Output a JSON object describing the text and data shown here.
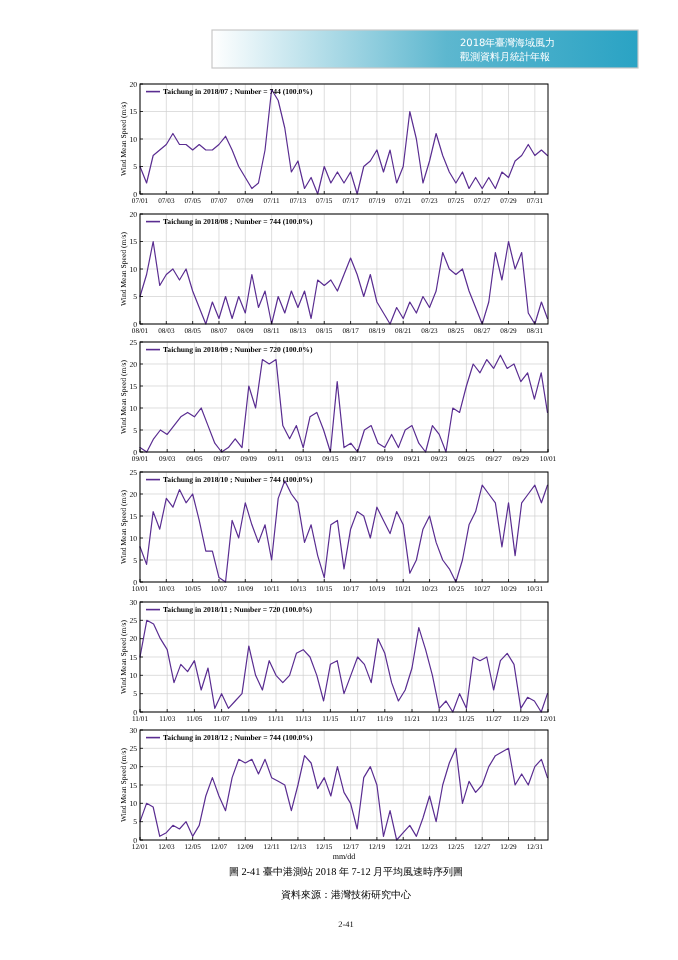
{
  "chart_data": [
    {
      "type": "line",
      "ylabel": "Wind Mean Speed (m/s)",
      "xlim": [
        "2018-07-01T00:00",
        "2018-08-01T00:00"
      ],
      "ylim": [
        0,
        20
      ],
      "yticks": [
        0,
        5,
        10,
        15,
        20
      ],
      "grid": true,
      "legend": "top left",
      "annotations": [
        "2018年臺灣海域風力",
        "觀測資料月統計年報"
      ],
      "xticks": [
        {
          "value": "2018-07-01",
          "label": "07/01"
        },
        {
          "value": "2018-07-03",
          "label": "07/03"
        },
        {
          "value": "2018-07-05",
          "label": "07/05"
        },
        {
          "value": "2018-07-07",
          "label": "07/07"
        },
        {
          "value": "2018-07-09",
          "label": "07/09"
        },
        {
          "value": "2018-07-11",
          "label": "07/11"
        },
        {
          "value": "2018-07-13",
          "label": "07/13"
        },
        {
          "value": "2018-07-15",
          "label": "07/15"
        },
        {
          "value": "2018-07-17",
          "label": "07/17"
        },
        {
          "value": "2018-07-19",
          "label": "07/19"
        },
        {
          "value": "2018-07-21",
          "label": "07/21"
        },
        {
          "value": "2018-07-23",
          "label": "07/23"
        },
        {
          "value": "2018-07-25",
          "label": "07/25"
        },
        {
          "value": "2018-07-27",
          "label": "07/27"
        },
        {
          "value": "2018-07-29",
          "label": "07/29"
        },
        {
          "value": "2018-07-31",
          "label": "07/31"
        }
      ],
      "series": [
        {
          "name": "Taichung in 2018/07 ; Number = 744  (100.0%)",
          "color": "#5a2d91",
          "x": [
            "2018-07-01T00:00",
            "2018-07-01T12:00",
            "2018-07-02T00:00",
            "2018-07-02T12:00",
            "2018-07-03T00:00",
            "2018-07-03T12:00",
            "2018-07-04T00:00",
            "2018-07-04T12:00",
            "2018-07-05T00:00",
            "2018-07-05T12:00",
            "2018-07-06T00:00",
            "2018-07-06T12:00",
            "2018-07-07T00:00",
            "2018-07-07T12:00",
            "2018-07-08T00:00",
            "2018-07-08T12:00",
            "2018-07-09T00:00",
            "2018-07-09T12:00",
            "2018-07-10T00:00",
            "2018-07-10T12:00",
            "2018-07-11T00:00",
            "2018-07-11T12:00",
            "2018-07-12T00:00",
            "2018-07-12T12:00",
            "2018-07-13T00:00",
            "2018-07-13T12:00",
            "2018-07-14T00:00",
            "2018-07-14T12:00",
            "2018-07-15T00:00",
            "2018-07-15T12:00",
            "2018-07-16T00:00",
            "2018-07-16T12:00",
            "2018-07-17T00:00",
            "2018-07-17T12:00",
            "2018-07-18T00:00",
            "2018-07-18T12:00",
            "2018-07-19T00:00",
            "2018-07-19T12:00",
            "2018-07-20T00:00",
            "2018-07-20T12:00",
            "2018-07-21T00:00",
            "2018-07-21T12:00",
            "2018-07-22T00:00",
            "2018-07-22T12:00",
            "2018-07-23T00:00",
            "2018-07-23T12:00",
            "2018-07-24T00:00",
            "2018-07-24T12:00",
            "2018-07-25T00:00",
            "2018-07-25T12:00",
            "2018-07-26T00:00",
            "2018-07-26T12:00",
            "2018-07-27T00:00",
            "2018-07-27T12:00",
            "2018-07-28T00:00",
            "2018-07-28T12:00",
            "2018-07-29T00:00",
            "2018-07-29T12:00",
            "2018-07-30T00:00",
            "2018-07-30T12:00",
            "2018-07-31T00:00",
            "2018-07-31T12:00",
            "2018-07-31T23:00"
          ],
          "values": [
            5,
            2,
            7,
            8,
            9,
            11,
            9,
            9,
            8,
            9,
            8,
            8,
            9,
            10.5,
            8,
            5,
            3,
            1,
            2,
            8,
            19,
            17,
            12,
            4,
            6,
            1,
            3,
            0,
            5,
            2,
            4,
            2,
            4,
            0,
            5,
            6,
            8,
            4,
            8,
            2,
            5,
            15,
            10,
            2,
            6,
            11,
            7,
            4,
            2,
            4,
            1,
            3,
            1,
            3,
            1,
            4,
            3,
            6,
            7,
            9,
            7,
            8,
            7
          ]
        }
      ]
    },
    {
      "type": "line",
      "ylabel": "Wind Mean Speed (m/s)",
      "xlim": [
        "2018-08-01T00:00",
        "2018-09-01T00:00"
      ],
      "ylim": [
        0,
        20
      ],
      "yticks": [
        0,
        5,
        10,
        15,
        20
      ],
      "grid": true,
      "legend": "top left",
      "xticks": [
        {
          "value": "2018-08-01",
          "label": "08/01"
        },
        {
          "value": "2018-08-03",
          "label": "08/03"
        },
        {
          "value": "2018-08-05",
          "label": "08/05"
        },
        {
          "value": "2018-08-07",
          "label": "08/07"
        },
        {
          "value": "2018-08-09",
          "label": "08/09"
        },
        {
          "value": "2018-08-11",
          "label": "08/11"
        },
        {
          "value": "2018-08-13",
          "label": "08/13"
        },
        {
          "value": "2018-08-15",
          "label": "08/15"
        },
        {
          "value": "2018-08-17",
          "label": "08/17"
        },
        {
          "value": "2018-08-19",
          "label": "08/19"
        },
        {
          "value": "2018-08-21",
          "label": "08/21"
        },
        {
          "value": "2018-08-23",
          "label": "08/23"
        },
        {
          "value": "2018-08-25",
          "label": "08/25"
        },
        {
          "value": "2018-08-27",
          "label": "08/27"
        },
        {
          "value": "2018-08-29",
          "label": "08/29"
        },
        {
          "value": "2018-08-31",
          "label": "08/31"
        }
      ],
      "series": [
        {
          "name": "Taichung in 2018/08 ; Number = 744  (100.0%)",
          "color": "#5a2d91",
          "x": [
            "2018-08-01T00:00",
            "2018-08-01T12:00",
            "2018-08-02T00:00",
            "2018-08-02T12:00",
            "2018-08-03T00:00",
            "2018-08-03T12:00",
            "2018-08-04T00:00",
            "2018-08-04T12:00",
            "2018-08-05T00:00",
            "2018-08-05T12:00",
            "2018-08-06T00:00",
            "2018-08-06T12:00",
            "2018-08-07T00:00",
            "2018-08-07T12:00",
            "2018-08-08T00:00",
            "2018-08-08T12:00",
            "2018-08-09T00:00",
            "2018-08-09T12:00",
            "2018-08-10T00:00",
            "2018-08-10T12:00",
            "2018-08-11T00:00",
            "2018-08-11T12:00",
            "2018-08-12T00:00",
            "2018-08-12T12:00",
            "2018-08-13T00:00",
            "2018-08-13T12:00",
            "2018-08-14T00:00",
            "2018-08-14T12:00",
            "2018-08-15T00:00",
            "2018-08-15T12:00",
            "2018-08-16T00:00",
            "2018-08-16T12:00",
            "2018-08-17T00:00",
            "2018-08-17T12:00",
            "2018-08-18T00:00",
            "2018-08-18T12:00",
            "2018-08-19T00:00",
            "2018-08-19T12:00",
            "2018-08-20T00:00",
            "2018-08-20T12:00",
            "2018-08-21T00:00",
            "2018-08-21T12:00",
            "2018-08-22T00:00",
            "2018-08-22T12:00",
            "2018-08-23T00:00",
            "2018-08-23T12:00",
            "2018-08-24T00:00",
            "2018-08-24T12:00",
            "2018-08-25T00:00",
            "2018-08-25T12:00",
            "2018-08-26T00:00",
            "2018-08-26T12:00",
            "2018-08-27T00:00",
            "2018-08-27T12:00",
            "2018-08-28T00:00",
            "2018-08-28T12:00",
            "2018-08-29T00:00",
            "2018-08-29T12:00",
            "2018-08-30T00:00",
            "2018-08-30T12:00",
            "2018-08-31T00:00",
            "2018-08-31T12:00",
            "2018-08-31T23:00"
          ],
          "values": [
            5,
            9,
            15,
            7,
            9,
            10,
            8,
            10,
            6,
            3,
            0,
            4,
            1,
            5,
            1,
            5,
            2,
            9,
            3,
            6,
            0,
            5,
            2,
            6,
            3,
            6,
            1,
            8,
            7,
            8,
            6,
            9,
            12,
            9,
            5,
            9,
            4,
            2,
            0,
            3,
            1,
            4,
            2,
            5,
            3,
            6,
            13,
            10,
            9,
            10,
            6,
            3,
            0,
            4,
            13,
            8,
            15,
            10,
            13,
            2,
            0,
            4,
            1
          ]
        }
      ]
    },
    {
      "type": "line",
      "ylabel": "Wind Mean Speed (m/s)",
      "xlim": [
        "2018-09-01T00:00",
        "2018-10-01T00:00"
      ],
      "ylim": [
        0,
        25
      ],
      "yticks": [
        0,
        5,
        10,
        15,
        20,
        25
      ],
      "grid": true,
      "legend": "top left",
      "xticks": [
        {
          "value": "2018-09-01",
          "label": "09/01"
        },
        {
          "value": "2018-09-03",
          "label": "09/03"
        },
        {
          "value": "2018-09-05",
          "label": "09/05"
        },
        {
          "value": "2018-09-07",
          "label": "09/07"
        },
        {
          "value": "2018-09-09",
          "label": "09/09"
        },
        {
          "value": "2018-09-11",
          "label": "09/11"
        },
        {
          "value": "2018-09-13",
          "label": "09/13"
        },
        {
          "value": "2018-09-15",
          "label": "09/15"
        },
        {
          "value": "2018-09-17",
          "label": "09/17"
        },
        {
          "value": "2018-09-19",
          "label": "09/19"
        },
        {
          "value": "2018-09-21",
          "label": "09/21"
        },
        {
          "value": "2018-09-23",
          "label": "09/23"
        },
        {
          "value": "2018-09-25",
          "label": "09/25"
        },
        {
          "value": "2018-09-27",
          "label": "09/27"
        },
        {
          "value": "2018-09-29",
          "label": "09/29"
        },
        {
          "value": "2018-10-01",
          "label": "10/01"
        }
      ],
      "series": [
        {
          "name": "Taichung in 2018/09 ; Number = 720  (100.0%)",
          "color": "#5a2d91",
          "x": [
            "2018-09-01T00:00",
            "2018-09-01T12:00",
            "2018-09-02T00:00",
            "2018-09-02T12:00",
            "2018-09-03T00:00",
            "2018-09-03T12:00",
            "2018-09-04T00:00",
            "2018-09-04T12:00",
            "2018-09-05T00:00",
            "2018-09-05T12:00",
            "2018-09-06T00:00",
            "2018-09-06T12:00",
            "2018-09-07T00:00",
            "2018-09-07T12:00",
            "2018-09-08T00:00",
            "2018-09-08T12:00",
            "2018-09-09T00:00",
            "2018-09-09T12:00",
            "2018-09-10T00:00",
            "2018-09-10T12:00",
            "2018-09-11T00:00",
            "2018-09-11T12:00",
            "2018-09-12T00:00",
            "2018-09-12T12:00",
            "2018-09-13T00:00",
            "2018-09-13T12:00",
            "2018-09-14T00:00",
            "2018-09-14T12:00",
            "2018-09-15T00:00",
            "2018-09-15T12:00",
            "2018-09-16T00:00",
            "2018-09-16T12:00",
            "2018-09-17T00:00",
            "2018-09-17T12:00",
            "2018-09-18T00:00",
            "2018-09-18T12:00",
            "2018-09-19T00:00",
            "2018-09-19T12:00",
            "2018-09-20T00:00",
            "2018-09-20T12:00",
            "2018-09-21T00:00",
            "2018-09-21T12:00",
            "2018-09-22T00:00",
            "2018-09-22T12:00",
            "2018-09-23T00:00",
            "2018-09-23T12:00",
            "2018-09-24T00:00",
            "2018-09-24T12:00",
            "2018-09-25T00:00",
            "2018-09-25T12:00",
            "2018-09-26T00:00",
            "2018-09-26T12:00",
            "2018-09-27T00:00",
            "2018-09-27T12:00",
            "2018-09-28T00:00",
            "2018-09-28T12:00",
            "2018-09-29T00:00",
            "2018-09-29T12:00",
            "2018-09-30T00:00",
            "2018-09-30T12:00",
            "2018-09-30T23:00"
          ],
          "values": [
            1,
            0,
            3,
            5,
            4,
            6,
            8,
            9,
            8,
            10,
            6,
            2,
            0,
            1,
            3,
            1,
            15,
            10,
            21,
            20,
            21,
            6,
            3,
            6,
            1,
            8,
            9,
            5,
            0,
            16,
            1,
            2,
            0,
            5,
            6,
            2,
            1,
            4,
            1,
            5,
            6,
            2,
            0,
            6,
            4,
            0,
            10,
            9,
            15,
            20,
            18,
            21,
            19,
            22,
            19,
            20,
            16,
            18,
            12,
            18,
            9
          ]
        }
      ]
    },
    {
      "type": "line",
      "ylabel": "Wind Mean Speed (m/s)",
      "xlim": [
        "2018-10-01T00:00",
        "2018-11-01T00:00"
      ],
      "ylim": [
        0,
        25
      ],
      "yticks": [
        0,
        5,
        10,
        15,
        20,
        25
      ],
      "grid": true,
      "legend": "top left",
      "xticks": [
        {
          "value": "2018-10-01",
          "label": "10/01"
        },
        {
          "value": "2018-10-03",
          "label": "10/03"
        },
        {
          "value": "2018-10-05",
          "label": "10/05"
        },
        {
          "value": "2018-10-07",
          "label": "10/07"
        },
        {
          "value": "2018-10-09",
          "label": "10/09"
        },
        {
          "value": "2018-10-11",
          "label": "10/11"
        },
        {
          "value": "2018-10-13",
          "label": "10/13"
        },
        {
          "value": "2018-10-15",
          "label": "10/15"
        },
        {
          "value": "2018-10-17",
          "label": "10/17"
        },
        {
          "value": "2018-10-19",
          "label": "10/19"
        },
        {
          "value": "2018-10-21",
          "label": "10/21"
        },
        {
          "value": "2018-10-23",
          "label": "10/23"
        },
        {
          "value": "2018-10-25",
          "label": "10/25"
        },
        {
          "value": "2018-10-27",
          "label": "10/27"
        },
        {
          "value": "2018-10-29",
          "label": "10/29"
        },
        {
          "value": "2018-10-31",
          "label": "10/31"
        }
      ],
      "series": [
        {
          "name": "Taichung in 2018/10 ; Number = 744  (100.0%)",
          "color": "#5a2d91",
          "x": [
            "2018-10-01T00:00",
            "2018-10-01T12:00",
            "2018-10-02T00:00",
            "2018-10-02T12:00",
            "2018-10-03T00:00",
            "2018-10-03T12:00",
            "2018-10-04T00:00",
            "2018-10-04T12:00",
            "2018-10-05T00:00",
            "2018-10-05T12:00",
            "2018-10-06T00:00",
            "2018-10-06T12:00",
            "2018-10-07T00:00",
            "2018-10-07T12:00",
            "2018-10-08T00:00",
            "2018-10-08T12:00",
            "2018-10-09T00:00",
            "2018-10-09T12:00",
            "2018-10-10T00:00",
            "2018-10-10T12:00",
            "2018-10-11T00:00",
            "2018-10-11T12:00",
            "2018-10-12T00:00",
            "2018-10-12T12:00",
            "2018-10-13T00:00",
            "2018-10-13T12:00",
            "2018-10-14T00:00",
            "2018-10-14T12:00",
            "2018-10-15T00:00",
            "2018-10-15T12:00",
            "2018-10-16T00:00",
            "2018-10-16T12:00",
            "2018-10-17T00:00",
            "2018-10-17T12:00",
            "2018-10-18T00:00",
            "2018-10-18T12:00",
            "2018-10-19T00:00",
            "2018-10-19T12:00",
            "2018-10-20T00:00",
            "2018-10-20T12:00",
            "2018-10-21T00:00",
            "2018-10-21T12:00",
            "2018-10-22T00:00",
            "2018-10-22T12:00",
            "2018-10-23T00:00",
            "2018-10-23T12:00",
            "2018-10-24T00:00",
            "2018-10-24T12:00",
            "2018-10-25T00:00",
            "2018-10-25T12:00",
            "2018-10-26T00:00",
            "2018-10-26T12:00",
            "2018-10-27T00:00",
            "2018-10-27T12:00",
            "2018-10-28T00:00",
            "2018-10-28T12:00",
            "2018-10-29T00:00",
            "2018-10-29T12:00",
            "2018-10-30T00:00",
            "2018-10-30T12:00",
            "2018-10-31T00:00",
            "2018-10-31T12:00",
            "2018-10-31T23:00"
          ],
          "values": [
            8,
            4,
            16,
            12,
            19,
            17,
            21,
            18,
            20,
            14,
            7,
            7,
            1,
            0,
            14,
            10,
            18,
            13,
            9,
            13,
            5,
            19,
            23,
            20,
            18,
            9,
            13,
            6,
            1,
            13,
            14,
            3,
            12,
            16,
            15,
            10,
            17,
            14,
            11,
            16,
            13,
            2,
            5,
            12,
            15,
            9,
            5,
            3,
            0,
            5,
            13,
            16,
            22,
            20,
            18,
            8,
            18,
            6,
            18,
            20,
            22,
            18,
            22
          ]
        }
      ]
    },
    {
      "type": "line",
      "ylabel": "Wind Mean Speed (m/s)",
      "xlim": [
        "2018-11-01T00:00",
        "2018-12-01T00:00"
      ],
      "ylim": [
        0,
        30
      ],
      "yticks": [
        0,
        5,
        10,
        15,
        20,
        25,
        30
      ],
      "grid": true,
      "legend": "top left",
      "xticks": [
        {
          "value": "2018-11-01",
          "label": "11/01"
        },
        {
          "value": "2018-11-03",
          "label": "11/03"
        },
        {
          "value": "2018-11-05",
          "label": "11/05"
        },
        {
          "value": "2018-11-07",
          "label": "11/07"
        },
        {
          "value": "2018-11-09",
          "label": "11/09"
        },
        {
          "value": "2018-11-11",
          "label": "11/11"
        },
        {
          "value": "2018-11-13",
          "label": "11/13"
        },
        {
          "value": "2018-11-15",
          "label": "11/15"
        },
        {
          "value": "2018-11-17",
          "label": "11/17"
        },
        {
          "value": "2018-11-19",
          "label": "11/19"
        },
        {
          "value": "2018-11-21",
          "label": "11/21"
        },
        {
          "value": "2018-11-23",
          "label": "11/23"
        },
        {
          "value": "2018-11-25",
          "label": "11/25"
        },
        {
          "value": "2018-11-27",
          "label": "11/27"
        },
        {
          "value": "2018-11-29",
          "label": "11/29"
        },
        {
          "value": "2018-12-01",
          "label": "12/01"
        }
      ],
      "series": [
        {
          "name": "Taichung in 2018/11 ; Number = 720  (100.0%)",
          "color": "#5a2d91",
          "x": [
            "2018-11-01T00:00",
            "2018-11-01T12:00",
            "2018-11-02T00:00",
            "2018-11-02T12:00",
            "2018-11-03T00:00",
            "2018-11-03T12:00",
            "2018-11-04T00:00",
            "2018-11-04T12:00",
            "2018-11-05T00:00",
            "2018-11-05T12:00",
            "2018-11-06T00:00",
            "2018-11-06T12:00",
            "2018-11-07T00:00",
            "2018-11-07T12:00",
            "2018-11-08T00:00",
            "2018-11-08T12:00",
            "2018-11-09T00:00",
            "2018-11-09T12:00",
            "2018-11-10T00:00",
            "2018-11-10T12:00",
            "2018-11-11T00:00",
            "2018-11-11T12:00",
            "2018-11-12T00:00",
            "2018-11-12T12:00",
            "2018-11-13T00:00",
            "2018-11-13T12:00",
            "2018-11-14T00:00",
            "2018-11-14T12:00",
            "2018-11-15T00:00",
            "2018-11-15T12:00",
            "2018-11-16T00:00",
            "2018-11-16T12:00",
            "2018-11-17T00:00",
            "2018-11-17T12:00",
            "2018-11-18T00:00",
            "2018-11-18T12:00",
            "2018-11-19T00:00",
            "2018-11-19T12:00",
            "2018-11-20T00:00",
            "2018-11-20T12:00",
            "2018-11-21T00:00",
            "2018-11-21T12:00",
            "2018-11-22T00:00",
            "2018-11-22T12:00",
            "2018-11-23T00:00",
            "2018-11-23T12:00",
            "2018-11-24T00:00",
            "2018-11-24T12:00",
            "2018-11-25T00:00",
            "2018-11-25T12:00",
            "2018-11-26T00:00",
            "2018-11-26T12:00",
            "2018-11-27T00:00",
            "2018-11-27T12:00",
            "2018-11-28T00:00",
            "2018-11-28T12:00",
            "2018-11-29T00:00",
            "2018-11-29T12:00",
            "2018-11-30T00:00",
            "2018-11-30T12:00",
            "2018-11-30T23:00"
          ],
          "values": [
            15,
            25,
            24,
            20,
            17,
            8,
            13,
            11,
            14,
            6,
            12,
            1,
            5,
            1,
            3,
            5,
            18,
            10,
            6,
            14,
            10,
            8,
            10,
            16,
            17,
            15,
            10,
            3,
            13,
            14,
            5,
            10,
            15,
            13,
            8,
            20,
            16,
            8,
            3,
            6,
            12,
            23,
            17,
            10,
            1,
            3,
            0,
            5,
            1,
            15,
            14,
            15,
            6,
            14,
            16,
            13,
            1,
            4,
            3,
            0,
            5
          ]
        }
      ]
    },
    {
      "type": "line",
      "ylabel": "Wind Mean Speed (m/s)",
      "xlabel": "mm/dd",
      "xlim": [
        "2018-12-01T00:00",
        "2019-01-01T00:00"
      ],
      "ylim": [
        0,
        30
      ],
      "yticks": [
        0,
        5,
        10,
        15,
        20,
        25,
        30
      ],
      "grid": true,
      "legend": "top left",
      "annotations": [
        "圖 2-41 臺中港測站 2018 年 7-12 月平均風速時序列圖",
        "資料來源：港灣技術研究中心",
        "2-41"
      ],
      "xticks": [
        {
          "value": "2018-12-01",
          "label": "12/01"
        },
        {
          "value": "2018-12-03",
          "label": "12/03"
        },
        {
          "value": "2018-12-05",
          "label": "12/05"
        },
        {
          "value": "2018-12-07",
          "label": "12/07"
        },
        {
          "value": "2018-12-09",
          "label": "12/09"
        },
        {
          "value": "2018-12-11",
          "label": "12/11"
        },
        {
          "value": "2018-12-13",
          "label": "12/13"
        },
        {
          "value": "2018-12-15",
          "label": "12/15"
        },
        {
          "value": "2018-12-17",
          "label": "12/17"
        },
        {
          "value": "2018-12-19",
          "label": "12/19"
        },
        {
          "value": "2018-12-21",
          "label": "12/21"
        },
        {
          "value": "2018-12-23",
          "label": "12/23"
        },
        {
          "value": "2018-12-25",
          "label": "12/25"
        },
        {
          "value": "2018-12-27",
          "label": "12/27"
        },
        {
          "value": "2018-12-29",
          "label": "12/29"
        },
        {
          "value": "2018-12-31",
          "label": "12/31"
        }
      ],
      "series": [
        {
          "name": "Taichung in 2018/12 ; Number = 744  (100.0%)",
          "color": "#5a2d91",
          "x": [
            "2018-12-01T00:00",
            "2018-12-01T12:00",
            "2018-12-02T00:00",
            "2018-12-02T12:00",
            "2018-12-03T00:00",
            "2018-12-03T12:00",
            "2018-12-04T00:00",
            "2018-12-04T12:00",
            "2018-12-05T00:00",
            "2018-12-05T12:00",
            "2018-12-06T00:00",
            "2018-12-06T12:00",
            "2018-12-07T00:00",
            "2018-12-07T12:00",
            "2018-12-08T00:00",
            "2018-12-08T12:00",
            "2018-12-09T00:00",
            "2018-12-09T12:00",
            "2018-12-10T00:00",
            "2018-12-10T12:00",
            "2018-12-11T00:00",
            "2018-12-11T12:00",
            "2018-12-12T00:00",
            "2018-12-12T12:00",
            "2018-12-13T00:00",
            "2018-12-13T12:00",
            "2018-12-14T00:00",
            "2018-12-14T12:00",
            "2018-12-15T00:00",
            "2018-12-15T12:00",
            "2018-12-16T00:00",
            "2018-12-16T12:00",
            "2018-12-17T00:00",
            "2018-12-17T12:00",
            "2018-12-18T00:00",
            "2018-12-18T12:00",
            "2018-12-19T00:00",
            "2018-12-19T12:00",
            "2018-12-20T00:00",
            "2018-12-20T12:00",
            "2018-12-21T00:00",
            "2018-12-21T12:00",
            "2018-12-22T00:00",
            "2018-12-22T12:00",
            "2018-12-23T00:00",
            "2018-12-23T12:00",
            "2018-12-24T00:00",
            "2018-12-24T12:00",
            "2018-12-25T00:00",
            "2018-12-25T12:00",
            "2018-12-26T00:00",
            "2018-12-26T12:00",
            "2018-12-27T00:00",
            "2018-12-27T12:00",
            "2018-12-28T00:00",
            "2018-12-28T12:00",
            "2018-12-29T00:00",
            "2018-12-29T12:00",
            "2018-12-30T00:00",
            "2018-12-30T12:00",
            "2018-12-31T00:00",
            "2018-12-31T12:00",
            "2018-12-31T23:00"
          ],
          "values": [
            5,
            10,
            9,
            1,
            2,
            4,
            3,
            5,
            1,
            4,
            12,
            17,
            12,
            8,
            17,
            22,
            21,
            22,
            18,
            22,
            17,
            16,
            15,
            8,
            15,
            23,
            21,
            14,
            17,
            12,
            20,
            13,
            10,
            3,
            17,
            20,
            15,
            1,
            8,
            0,
            2,
            4,
            1,
            6,
            12,
            5,
            15,
            21,
            25,
            10,
            16,
            13,
            15,
            20,
            23,
            24,
            25,
            15,
            18,
            15,
            20,
            22,
            17
          ]
        }
      ]
    }
  ]
}
